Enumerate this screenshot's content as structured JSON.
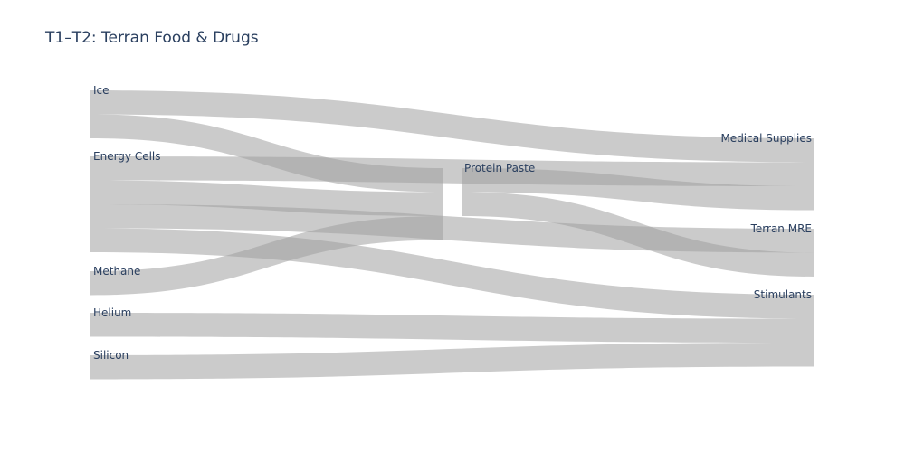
{
  "chart_data": {
    "type": "sankey",
    "title": "T1–T2: Terran Food & Drugs",
    "nodes": [
      {
        "id": "ice",
        "label": "Ice",
        "color": "#c084fc"
      },
      {
        "id": "energy",
        "label": "Energy Cells",
        "color": "#44dcf4"
      },
      {
        "id": "methane",
        "label": "Methane",
        "color": "#f07563"
      },
      {
        "id": "helium",
        "label": "Helium",
        "color": "#8a8ef8"
      },
      {
        "id": "silicon",
        "label": "Silicon",
        "color": "#33d6a0"
      },
      {
        "id": "paste",
        "label": "Protein Paste",
        "color": "#44dcf4"
      },
      {
        "id": "medical",
        "label": "Medical Supplies",
        "color": "#ffa96b"
      },
      {
        "id": "mre",
        "label": "Terran MRE",
        "color": "#44dcf4"
      },
      {
        "id": "stim",
        "label": "Stimulants",
        "color": "#ff87a8"
      }
    ],
    "links": [
      {
        "source": "ice",
        "target": "medical",
        "value": 10
      },
      {
        "source": "ice",
        "target": "paste",
        "value": 10
      },
      {
        "source": "energy",
        "target": "medical",
        "value": 10
      },
      {
        "source": "energy",
        "target": "paste",
        "value": 10
      },
      {
        "source": "energy",
        "target": "mre",
        "value": 10
      },
      {
        "source": "energy",
        "target": "stim",
        "value": 10
      },
      {
        "source": "methane",
        "target": "paste",
        "value": 10
      },
      {
        "source": "helium",
        "target": "stim",
        "value": 10
      },
      {
        "source": "silicon",
        "target": "stim",
        "value": 10
      },
      {
        "source": "paste",
        "target": "medical",
        "value": 10
      },
      {
        "source": "paste",
        "target": "mre",
        "value": 10
      }
    ],
    "link_color": "#a0a0a0"
  }
}
